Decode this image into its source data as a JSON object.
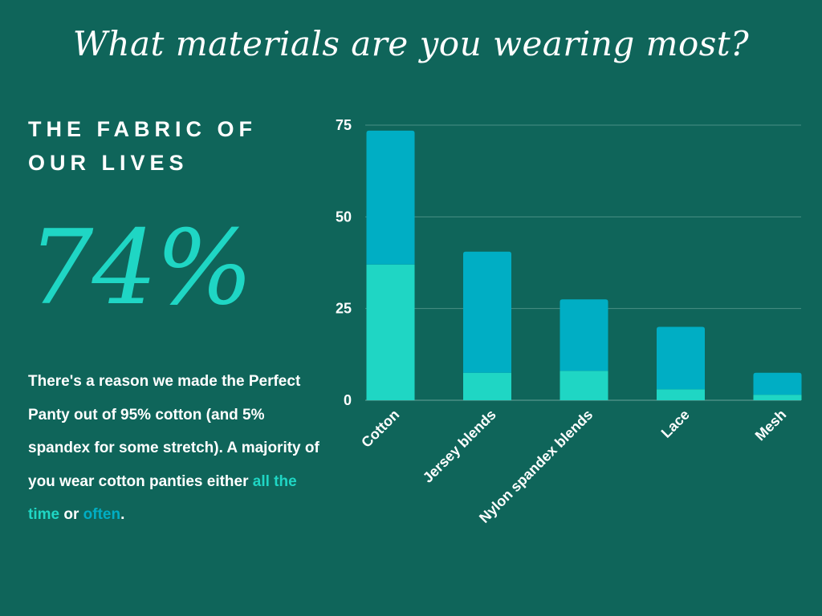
{
  "header": {
    "title": "What materials are you wearing most?"
  },
  "left": {
    "kicker_line1": "THE FABRIC OF",
    "kicker_line2": "OUR LIVES",
    "stat": "74%",
    "body_part1": "There's a reason we made the Perfect Panty out of 95% cotton (and 5% spandex for some stretch). A majority of you wear cotton panties either ",
    "highlight_all_the_time": "all the time",
    "body_part2": " or ",
    "highlight_often": "often",
    "body_part3": "."
  },
  "colors": {
    "background": "#0f655a",
    "all_the_time": "#1fd6c4",
    "often": "#00aec4",
    "gridline": "#4a8f85"
  },
  "chart_data": {
    "type": "bar",
    "stacked": true,
    "categories": [
      "Cotton",
      "Jersey blends",
      "Nylon spandex blends",
      "Lace",
      "Mesh"
    ],
    "series": [
      {
        "values": [
          37,
          7.5,
          8,
          3,
          1.5
        ],
        "color": "#1fd6c4"
      },
      {
        "values": [
          36.5,
          33,
          19.5,
          17,
          6
        ],
        "color": "#00aec4"
      }
    ],
    "yticks": [
      0,
      25,
      50,
      75
    ],
    "ylim": [
      0,
      75
    ],
    "grid": true,
    "xlabel_rotation": -45
  }
}
